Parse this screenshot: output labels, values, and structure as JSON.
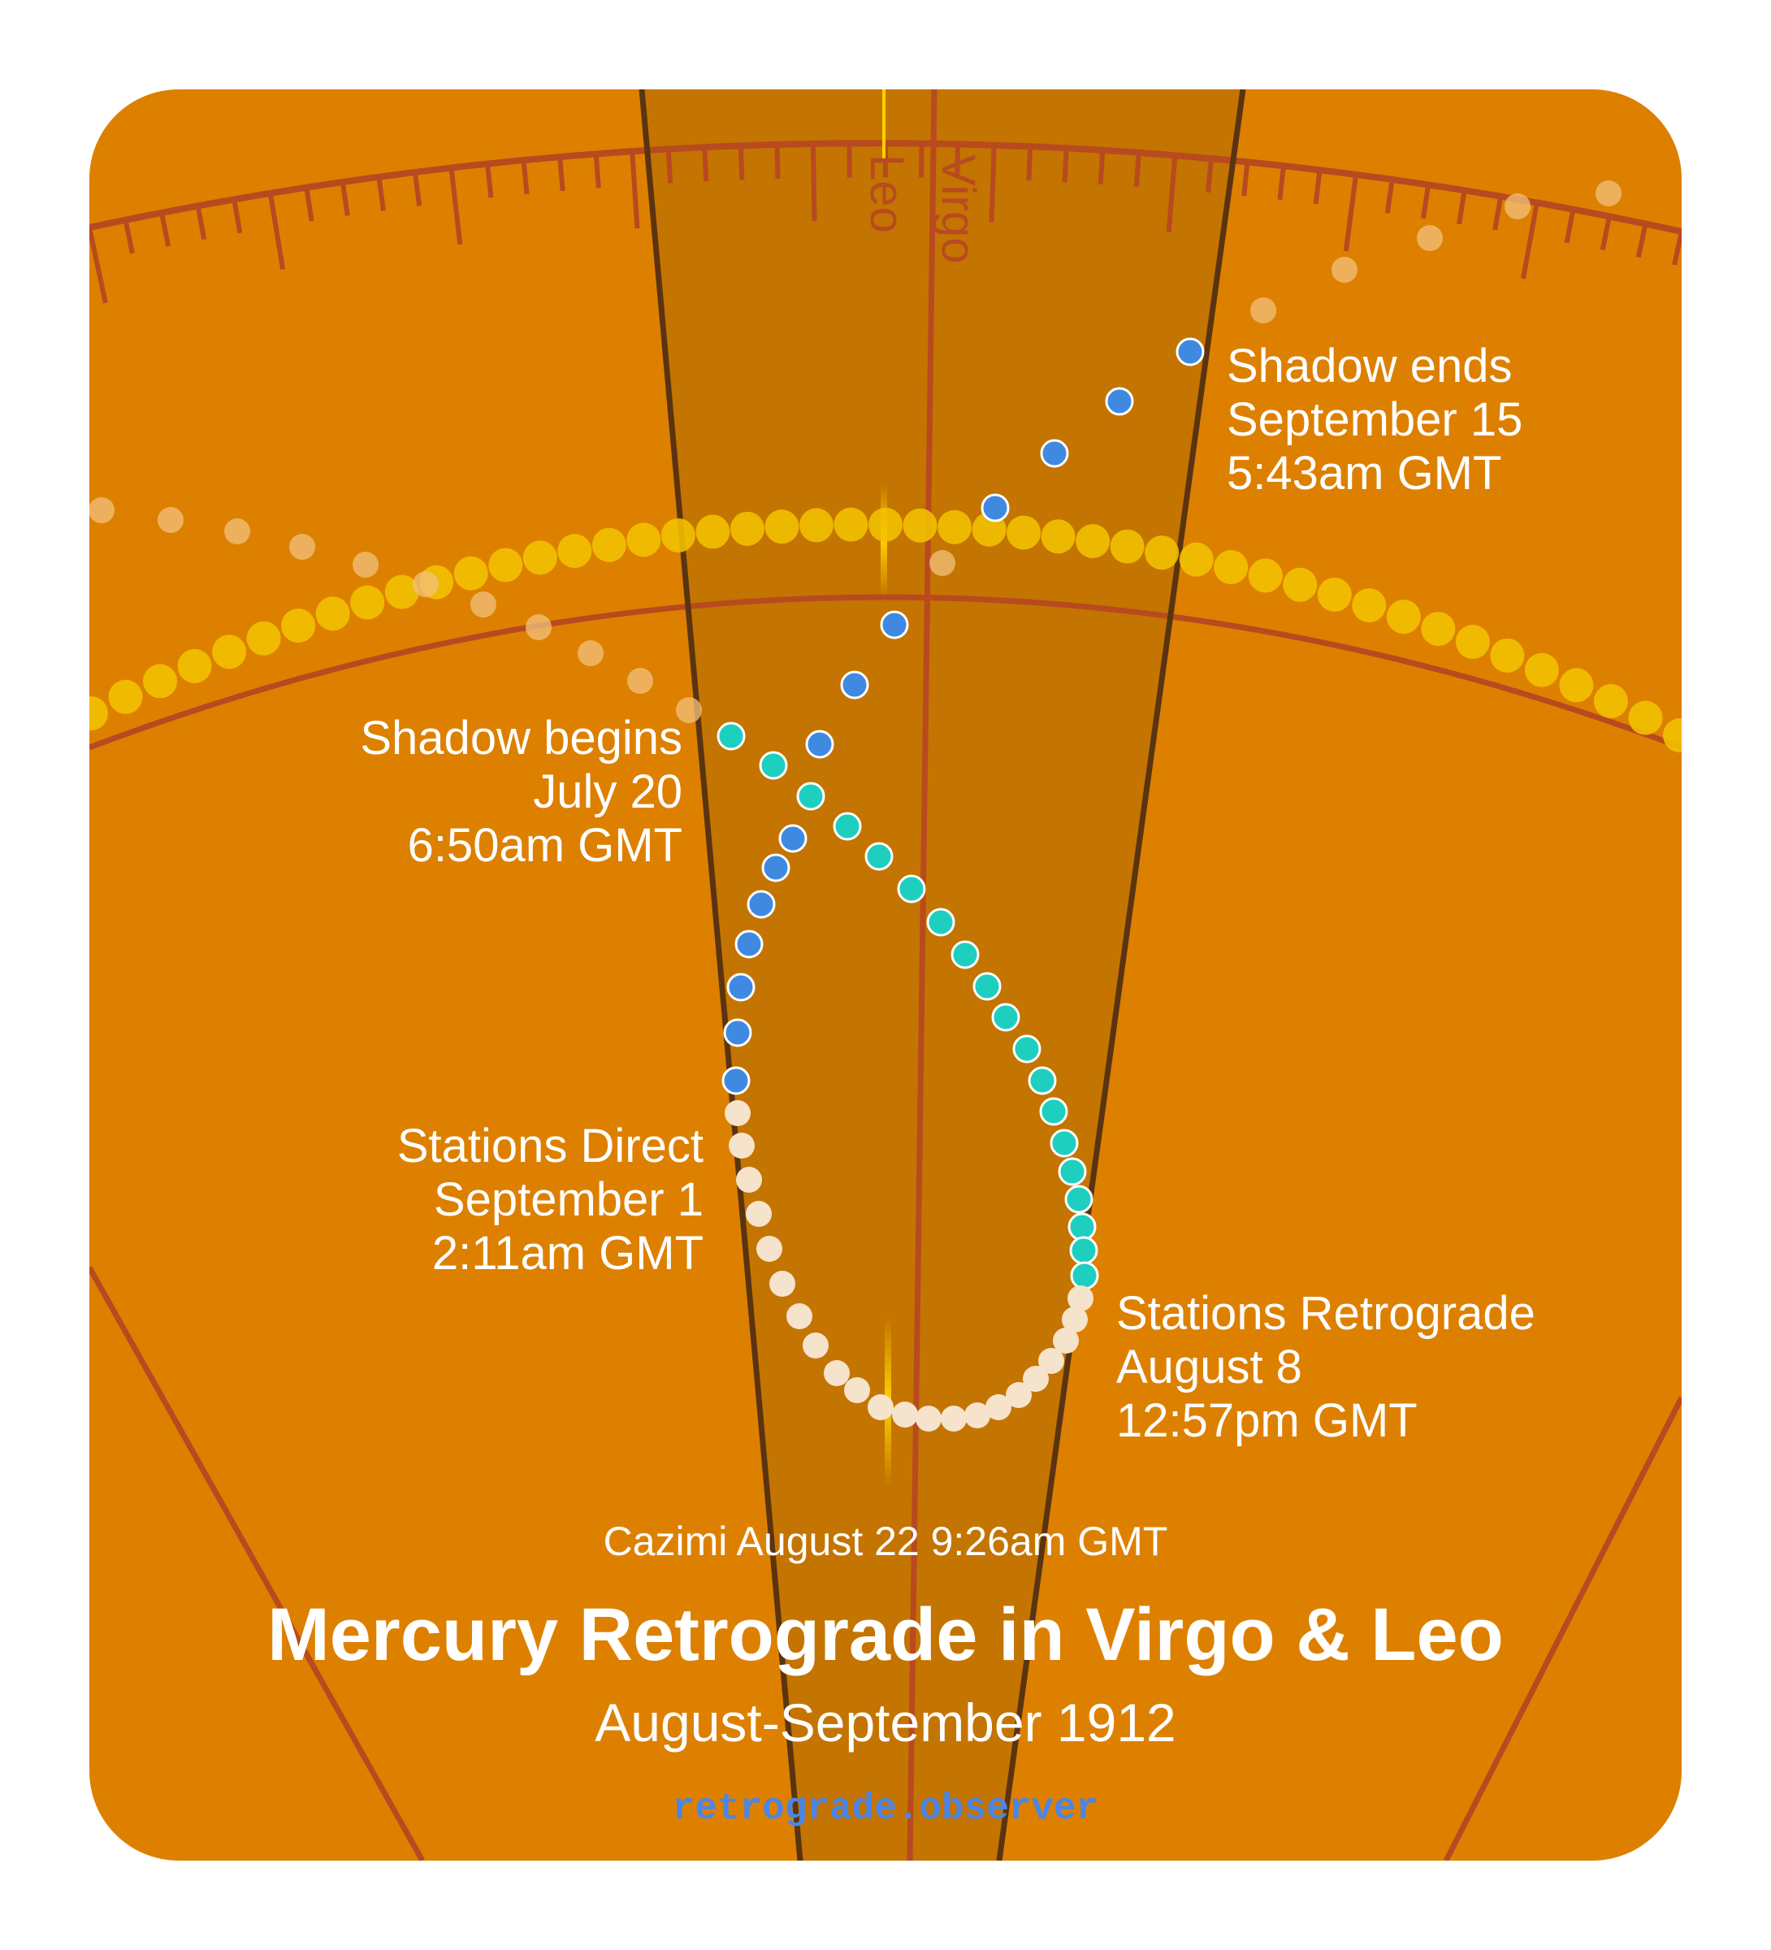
{
  "colors": {
    "background": "#ffffff",
    "panel": "#dd8000",
    "shadow_band": "#c47400",
    "zodiac_lines": "#b84a20",
    "band_edges": "#5a3410",
    "sun_path": "#f2c200",
    "prior_path": "#f2c27c",
    "shadow_dots": "#1ecfc0",
    "retrograde_dots": "#f5e3cc",
    "direct_dots": "#3f8ae0",
    "site": "#4a86e8"
  },
  "signs": [
    "Leo",
    "Virgo"
  ],
  "events": {
    "shadow_ends": [
      "Shadow ends",
      "September 15",
      "5:43am GMT"
    ],
    "shadow_begins": [
      "Shadow begins",
      "July 20",
      "6:50am GMT"
    ],
    "stations_direct": [
      "Stations Direct",
      "September 1",
      "2:11am GMT"
    ],
    "stations_retrograde": [
      "Stations Retrograde",
      "August 8",
      "12:57pm GMT"
    ]
  },
  "cazimi": "Cazimi August 22 9:26am GMT",
  "title": "Mercury Retrograde in Virgo & Leo",
  "subtitle": "August-September 1912",
  "site": "retrograde.observer",
  "icons": {
    "mercury_dot": "circle",
    "sun_dot": "circle"
  }
}
